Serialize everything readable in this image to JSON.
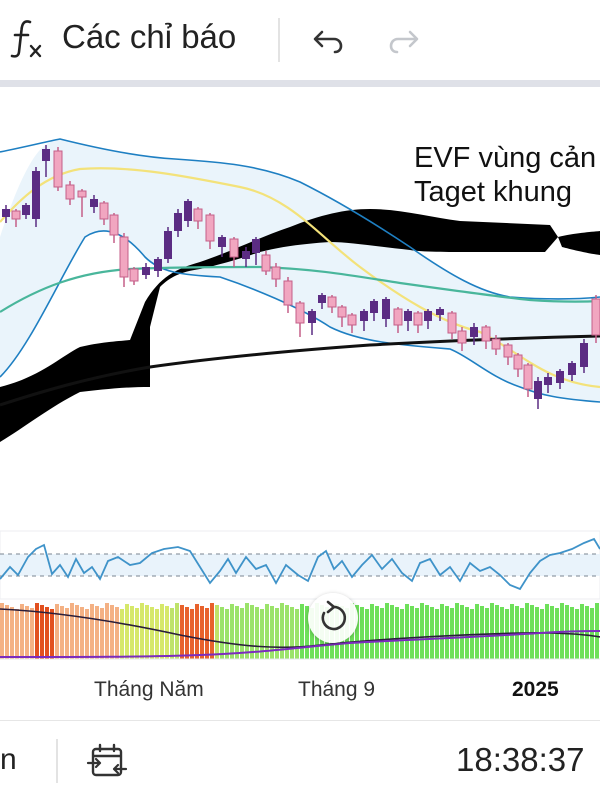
{
  "toolbar": {
    "indicators_label": "Các chỉ báo",
    "icons": [
      "function-fx-icon",
      "undo-icon",
      "redo-icon"
    ]
  },
  "chart": {
    "annotation_line1": "EVF vùng cản",
    "annotation_line2": "Taget khung",
    "time_labels": [
      "Tháng Năm",
      "Tháng 9",
      "2025"
    ],
    "colors": {
      "candle_up": "#5b2c83",
      "candle_down": "#f1a6c0",
      "bollinger_band": "#1e7fc2",
      "bollinger_fill": "#eaf4fb",
      "cloud_bull": "#c08ad6",
      "cloud_bear": "#f4a3ac",
      "long_ma": "#111111",
      "mid_ma": "#49b69b",
      "short_ma": "#f3e27a",
      "oscillator": "#3f93c9"
    }
  },
  "bottom_bar": {
    "left_text": "n",
    "clock": "18:38:37",
    "icons": [
      "date-range-icon"
    ]
  }
}
